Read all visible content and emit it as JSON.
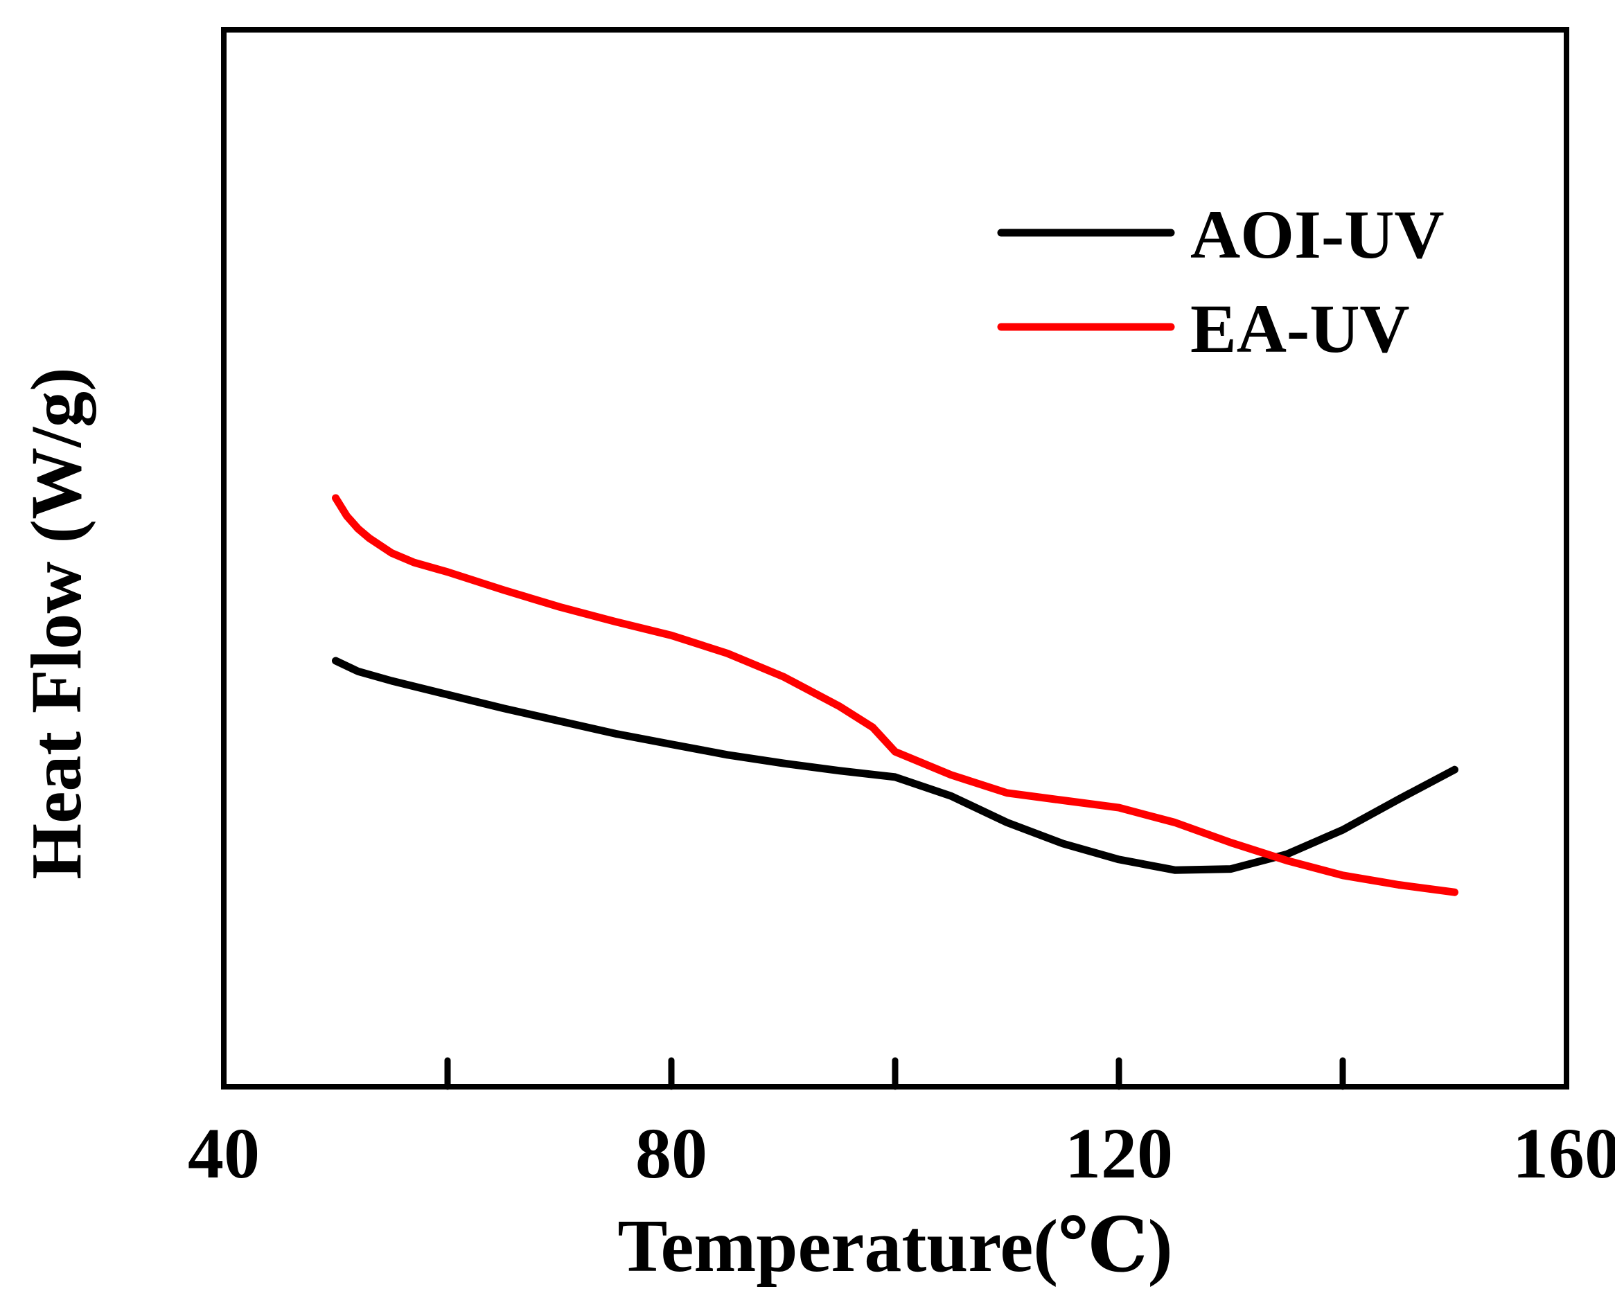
{
  "chart_data": {
    "type": "line",
    "title": "",
    "xlabel": "Temperature(℃)",
    "ylabel": "Heat  Flow (W/g)",
    "xlim": [
      40,
      160
    ],
    "ylim": [
      0,
      1
    ],
    "x_ticks": [
      40,
      80,
      120,
      160
    ],
    "x_tick_labels": [
      "40",
      "80",
      "120",
      "160"
    ],
    "x_minor_ticks": [
      60,
      100,
      140
    ],
    "y_ticks_shown": false,
    "grid": false,
    "legend_position": "top-right",
    "series": [
      {
        "name": "AOI-UV",
        "color": "#000000",
        "x": [
          50,
          52,
          55,
          60,
          65,
          70,
          75,
          80,
          85,
          90,
          95,
          100,
          105,
          110,
          115,
          120,
          125,
          130,
          135,
          140,
          145,
          150
        ],
        "y": [
          0.403,
          0.393,
          0.384,
          0.371,
          0.358,
          0.346,
          0.334,
          0.324,
          0.314,
          0.306,
          0.299,
          0.293,
          0.275,
          0.25,
          0.23,
          0.215,
          0.205,
          0.206,
          0.22,
          0.243,
          0.272,
          0.3
        ]
      },
      {
        "name": "EA-UV",
        "color": "#ff0000",
        "x": [
          50,
          51,
          52,
          53,
          55,
          57,
          60,
          65,
          70,
          75,
          80,
          85,
          90,
          95,
          98,
          100,
          105,
          110,
          115,
          120,
          125,
          130,
          135,
          140,
          145,
          150
        ],
        "y": [
          0.557,
          0.54,
          0.528,
          0.519,
          0.505,
          0.496,
          0.487,
          0.47,
          0.454,
          0.44,
          0.427,
          0.41,
          0.388,
          0.36,
          0.34,
          0.317,
          0.295,
          0.278,
          0.271,
          0.264,
          0.25,
          0.231,
          0.214,
          0.2,
          0.191,
          0.184
        ]
      }
    ]
  }
}
